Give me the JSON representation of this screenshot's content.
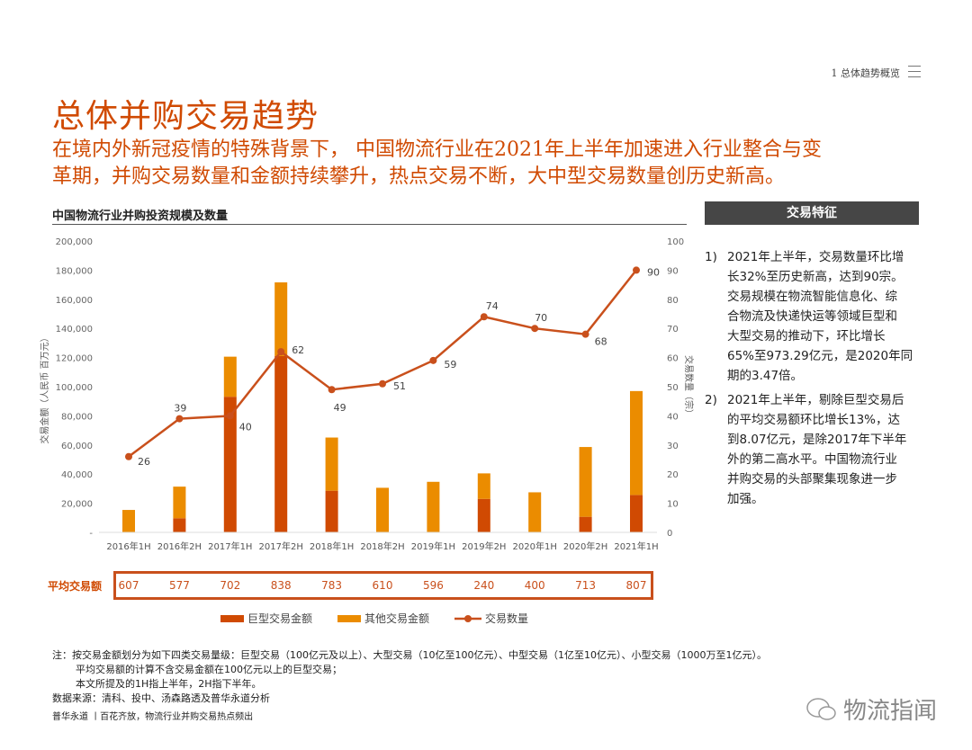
{
  "header": {
    "section": "1 总体趋势概览",
    "menu_icon": "hamburger-icon"
  },
  "title": "总体并购交易趋势",
  "subtitle_lines": [
    "在境内外新冠疫情的特殊背景下， 中国物流行业在2021年上半年加速进入行业整合与变",
    "革期，并购交易数量和金额持续攀升，热点交易不断，大中型交易数量创历史新高。"
  ],
  "colors": {
    "accent": "#d04a02",
    "giant": "#d04a02",
    "other": "#eb8c00",
    "line": "#c9501c",
    "panel": "#464646"
  },
  "chart_data": {
    "type": "bar",
    "title": "中国物流行业并购投资规模及数量",
    "categories": [
      "2016年1H",
      "2016年2H",
      "2017年1H",
      "2017年2H",
      "2018年1H",
      "2018年2H",
      "2019年1H",
      "2019年2H",
      "2020年1H",
      "2020年2H",
      "2021年1H"
    ],
    "ylabel": "交易金额（人民币 百万元）",
    "y2label": "交易数量（宗）",
    "ylim": [
      0,
      200000
    ],
    "y2lim": [
      0,
      100
    ],
    "yticks": [
      "-",
      "20,000",
      "40,000",
      "60,000",
      "80,000",
      "100,000",
      "120,000",
      "140,000",
      "160,000",
      "180,000",
      "200,000"
    ],
    "y2ticks": [
      "0",
      "10",
      "20",
      "30",
      "40",
      "50",
      "60",
      "70",
      "80",
      "90",
      "100"
    ],
    "series": [
      {
        "name": "巨型交易金额",
        "type": "bar",
        "stack": "amount",
        "values": [
          0,
          9700,
          93100,
          121000,
          28600,
          0,
          0,
          23000,
          0,
          10700,
          25700
        ]
      },
      {
        "name": "其他交易金额",
        "type": "bar",
        "stack": "amount",
        "values": [
          15400,
          21700,
          27500,
          50600,
          36500,
          30600,
          34700,
          17500,
          27500,
          47900,
          71300
        ]
      },
      {
        "name": "交易数量",
        "type": "line",
        "axis": "right",
        "values": [
          26,
          39,
          40,
          62,
          49,
          51,
          59,
          74,
          70,
          68,
          90
        ]
      }
    ],
    "avg_label": "平均交易额",
    "avg_values": [
      "607",
      "577",
      "702",
      "838",
      "783",
      "610",
      "596",
      "240",
      "400",
      "713",
      "807"
    ],
    "legend": [
      "巨型交易金额",
      "其他交易金额",
      "交易数量"
    ],
    "legend_position": "bottom",
    "grid": false
  },
  "panel": {
    "title": "交易特征",
    "items": [
      {
        "num": "1)",
        "lines": [
          "2021年上半年，交易数量环比增",
          "长32%至历史新高，达到90宗。",
          "交易规模在物流智能信息化、综",
          "合物流及快递快运等领域巨型和",
          "大型交易的推动下，环比增长",
          "65%至973.29亿元，是2020年同",
          "期的3.47倍。"
        ]
      },
      {
        "num": "2)",
        "lines": [
          "2021年上半年，剔除巨型交易后",
          "的平均交易额环比增长13%，达",
          "到8.07亿元，是除2017年下半年",
          "外的第二高水平。中国物流行业",
          "并购交易的头部聚集现象进一步",
          "加强。"
        ]
      }
    ]
  },
  "notes": [
    "注：按交易金额划分为如下四类交易量级：巨型交易（100亿元及以上）、大型交易（10亿至100亿元）、中型交易（1亿至10亿元）、小型交易（1000万至1亿元）。",
    "平均交易额的计算不含交易金额在100亿元以上的巨型交易；",
    "本文所提及的1H指上半年，2H指下半年。"
  ],
  "source": "数据来源：清科、投中、汤森路透及普华永道分析",
  "footer": "普华永道 丨百花齐放，物流行业并购交易热点频出",
  "watermark": "物流指闻"
}
